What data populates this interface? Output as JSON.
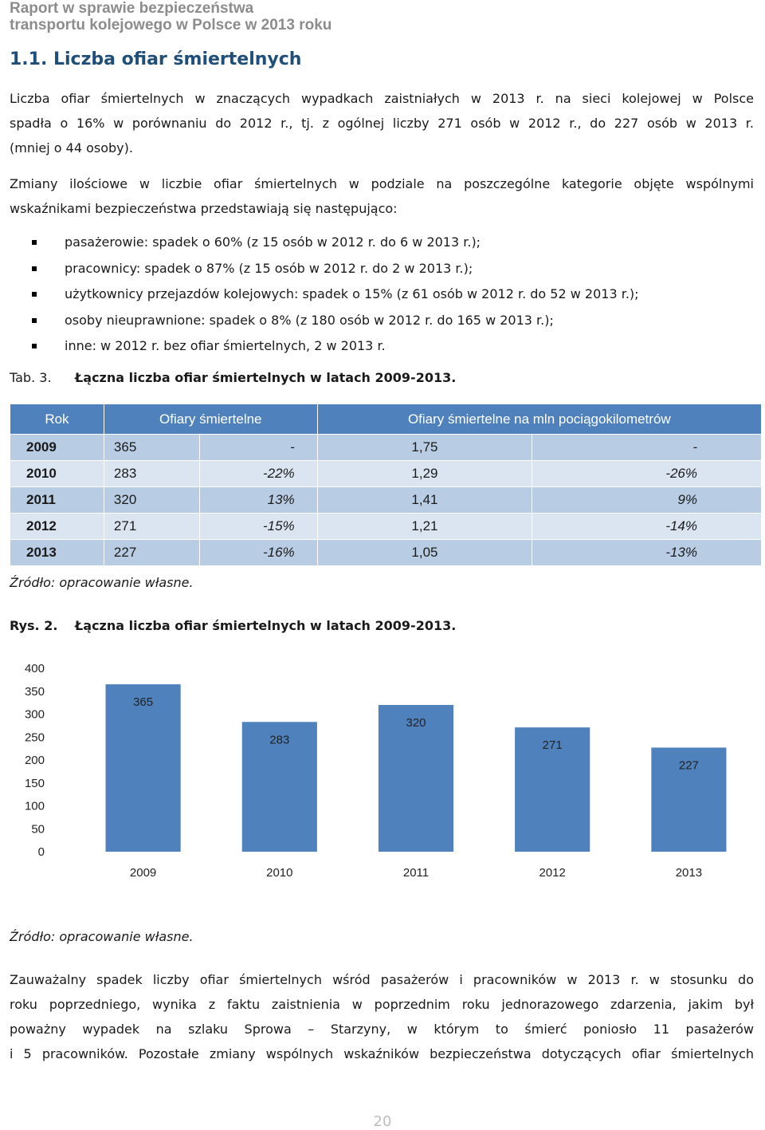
{
  "header": {
    "line1": "Raport w sprawie bezpieczeństwa",
    "line2": "transportu kolejowego w Polsce w 2013 roku"
  },
  "section_title": "1.1. Liczba ofiar śmiertelnych",
  "paragraph1": [
    "Liczba ofiar śmiertelnych w znaczących wypadkach zaistniałych w 2013 r. na sieci kolejowej w Polsce",
    "spadła o 16% w porównaniu do 2012 r., tj. z ogólnej liczby 271 osób w 2012 r., do 227 osób w 2013 r.",
    "(mniej o 44 osoby)."
  ],
  "paragraph2": [
    "Zmiany ilościowe w liczbie ofiar śmiertelnych w podziale na poszczególne kategorie objęte wspólnymi",
    "wskaźnikami bezpieczeństwa przedstawiają się następująco:"
  ],
  "bullets": [
    "pasażerowie: spadek o 60% (z 15 osób w 2012 r. do 6 w 2013 r.);",
    "pracownicy: spadek o 87% (z 15 osób w 2012 r. do 2 w 2013 r.);",
    "użytkownicy przejazdów kolejowych: spadek o 15% (z 61 osób w 2012 r. do 52 w 2013 r.);",
    "osoby nieuprawnione: spadek o 8% (z 180 osób w 2012 r. do 165 w 2013 r.);",
    "inne: w 2012 r. bez ofiar śmiertelnych, 2 w 2013 r."
  ],
  "table_caption": {
    "num": "Tab. 3.",
    "title": "Łączna liczba ofiar śmiertelnych w latach 2009-2013."
  },
  "table": {
    "headers": [
      "Rok",
      "Ofiary śmiertelne",
      "Ofiary śmiertelne na mln pociągokilometrów"
    ],
    "rows": [
      [
        "2009",
        "365",
        "-",
        "1,75",
        "-"
      ],
      [
        "2010",
        "283",
        "-22%",
        "1,29",
        "-26%"
      ],
      [
        "2011",
        "320",
        "13%",
        "1,41",
        "9%"
      ],
      [
        "2012",
        "271",
        "-15%",
        "1,21",
        "-14%"
      ],
      [
        "2013",
        "227",
        "-16%",
        "1,05",
        "-13%"
      ]
    ]
  },
  "source1": "Źródło: opracowanie własne.",
  "figure_caption": {
    "num": "Rys. 2.",
    "title": "Łączna liczba ofiar śmiertelnych w latach 2009-2013."
  },
  "chart_data": {
    "type": "bar",
    "categories": [
      "2009",
      "2010",
      "2011",
      "2012",
      "2013"
    ],
    "values": [
      365,
      283,
      320,
      271,
      227
    ],
    "data_labels": [
      "365",
      "283",
      "320",
      "271",
      "227"
    ],
    "ylim": [
      0,
      400
    ],
    "yticks": [
      "0",
      "50",
      "100",
      "150",
      "200",
      "250",
      "300",
      "350",
      "400"
    ],
    "title": "",
    "xlabel": "",
    "ylabel": "",
    "grid": false,
    "bar_color": "#4f81bd"
  },
  "source2": "Źródło: opracowanie własne.",
  "paragraph3": [
    "Zauważalny spadek liczby ofiar śmiertelnych wśród pasażerów i pracowników w 2013 r. w stosunku do",
    "roku poprzedniego, wynika z faktu zaistnienia w poprzednim roku jednorazowego zdarzenia, jakim był",
    "poważny wypadek na szlaku Sprowa – Starzyny, w którym to śmierć poniosło 11 pasażerów",
    "i 5 pracowników. Pozostałe zmiany wspólnych wskaźników bezpieczeństwa dotyczących ofiar śmiertelnych"
  ],
  "page_number": "20",
  "colors": {
    "header_grey": "#8c8c8c",
    "title_blue": "#1f4e79",
    "table_header": "#4f81bd",
    "row_dark": "#b8cce4",
    "row_light": "#dbe5f1"
  }
}
